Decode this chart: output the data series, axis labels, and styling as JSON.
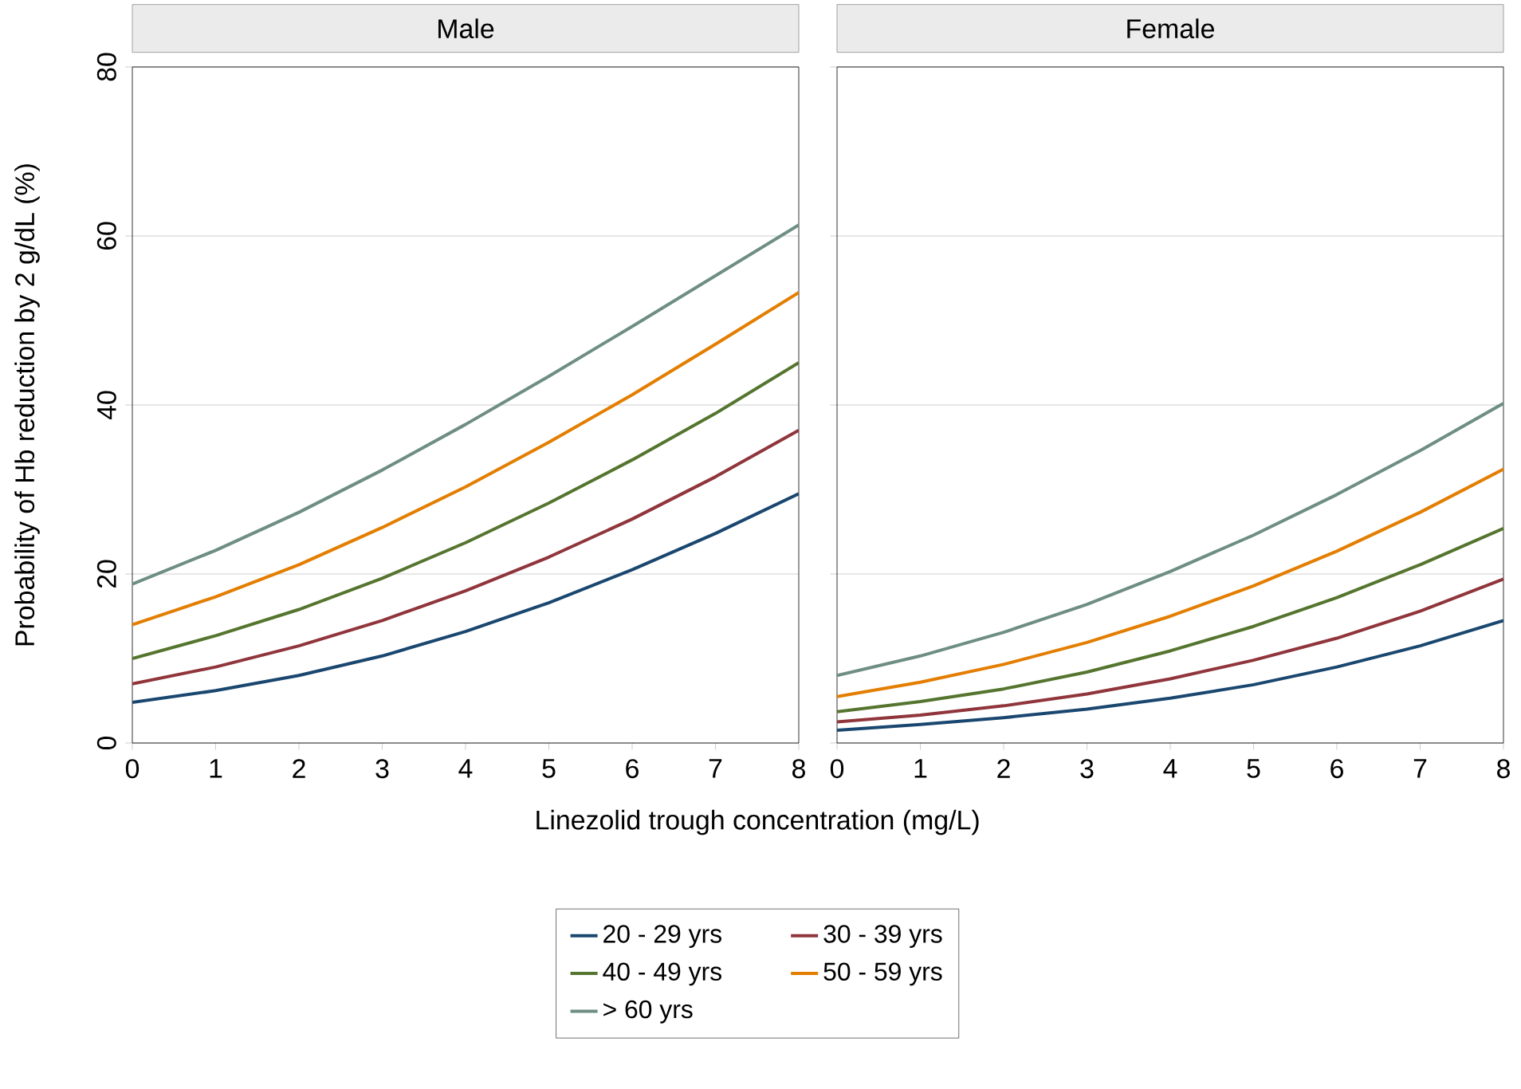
{
  "chart_data": [
    {
      "type": "line",
      "title": "Male",
      "xlabel": "Linezolid trough concentration (mg/L)",
      "ylabel": "Probability of Hb reduction by 2 g/dL (%)",
      "x": [
        0,
        1,
        2,
        3,
        4,
        5,
        6,
        7,
        8
      ],
      "xlim": [
        0,
        8
      ],
      "xticks": [
        0,
        1,
        2,
        3,
        4,
        5,
        6,
        7,
        8
      ],
      "ylim": [
        0,
        80
      ],
      "yticks": [
        0,
        20,
        40,
        60,
        80
      ],
      "grid": "y",
      "legend": "bottom",
      "series": [
        {
          "name": "20 - 29 yrs",
          "color": "#1a476f",
          "values": [
            4.8,
            6.2,
            8.0,
            10.3,
            13.2,
            16.6,
            20.5,
            24.8,
            29.5
          ]
        },
        {
          "name": "30 - 39 yrs",
          "color": "#90353b",
          "values": [
            7.0,
            9.0,
            11.5,
            14.5,
            18.0,
            22.0,
            26.5,
            31.5,
            37.0
          ]
        },
        {
          "name": "40 - 49 yrs",
          "color": "#55752f",
          "values": [
            10.0,
            12.7,
            15.8,
            19.5,
            23.7,
            28.4,
            33.5,
            39.0,
            45.0
          ]
        },
        {
          "name": "50 - 59 yrs",
          "color": "#e37e00",
          "values": [
            14.0,
            17.3,
            21.1,
            25.5,
            30.3,
            35.6,
            41.2,
            47.2,
            53.3
          ]
        },
        {
          "name": "> 60 yrs",
          "color": "#6e8e84",
          "values": [
            18.8,
            22.8,
            27.3,
            32.3,
            37.7,
            43.4,
            49.3,
            55.3,
            61.3
          ]
        }
      ]
    },
    {
      "type": "line",
      "title": "Female",
      "x": [
        0,
        1,
        2,
        3,
        4,
        5,
        6,
        7,
        8
      ],
      "xlim": [
        0,
        8
      ],
      "xticks": [
        0,
        1,
        2,
        3,
        4,
        5,
        6,
        7,
        8
      ],
      "ylim": [
        0,
        80
      ],
      "yticks": [
        0,
        20,
        40,
        60,
        80
      ],
      "grid": "y",
      "tick_labels": "x",
      "series": [
        {
          "color": "#1a476f",
          "values": [
            1.5,
            2.2,
            3.0,
            4.0,
            5.3,
            6.9,
            9.0,
            11.5,
            14.5
          ]
        },
        {
          "color": "#90353b",
          "values": [
            2.5,
            3.3,
            4.4,
            5.8,
            7.6,
            9.8,
            12.4,
            15.6,
            19.4
          ]
        },
        {
          "color": "#55752f",
          "values": [
            3.7,
            4.9,
            6.4,
            8.4,
            10.9,
            13.8,
            17.2,
            21.1,
            25.4
          ]
        },
        {
          "color": "#e37e00",
          "values": [
            5.5,
            7.2,
            9.3,
            11.9,
            15.0,
            18.6,
            22.7,
            27.3,
            32.4
          ]
        },
        {
          "color": "#6e8e84",
          "values": [
            8.0,
            10.3,
            13.1,
            16.4,
            20.3,
            24.6,
            29.4,
            34.6,
            40.2
          ]
        }
      ]
    }
  ]
}
